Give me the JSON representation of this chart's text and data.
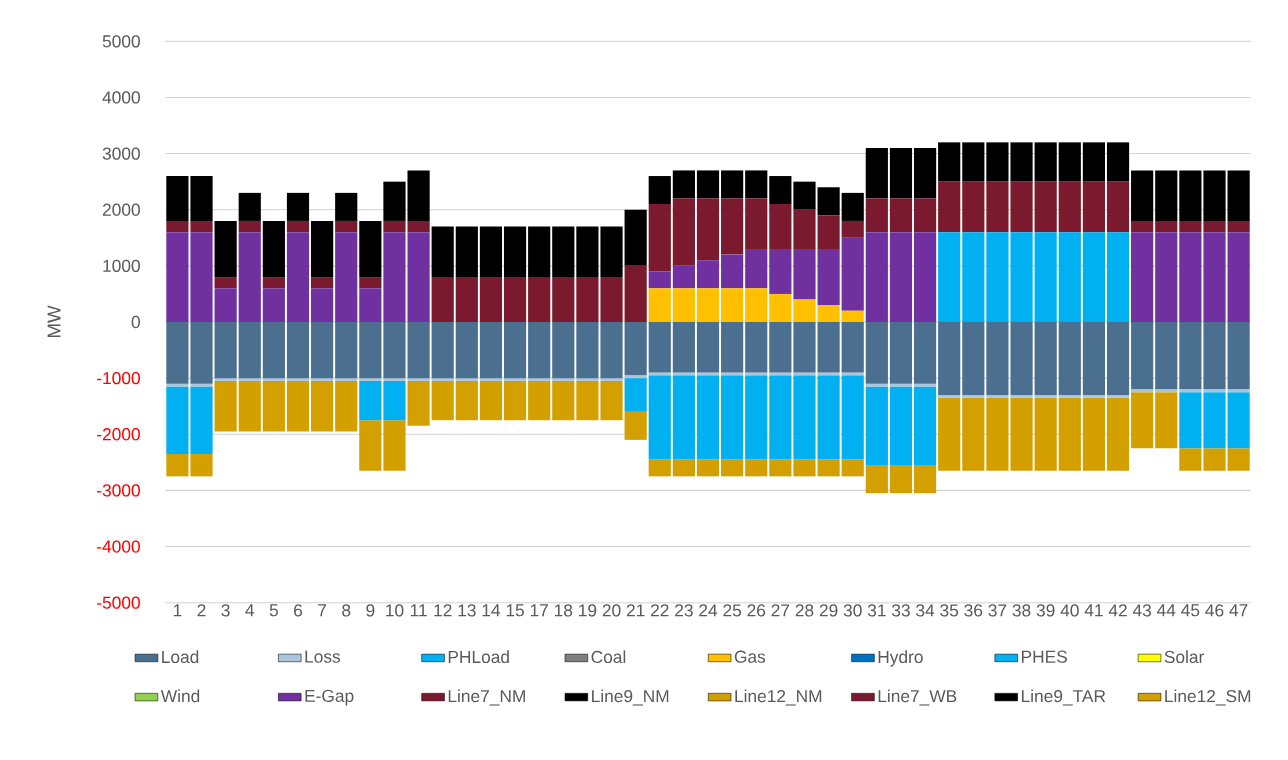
{
  "chart_data": {
    "type": "bar",
    "stacked": true,
    "ylabel": "MW",
    "categories": [
      "1",
      "2",
      "3",
      "4",
      "5",
      "6",
      "7",
      "8",
      "9",
      "10",
      "11",
      "12",
      "13",
      "14",
      "15",
      "17",
      "18",
      "19",
      "20",
      "21",
      "22",
      "23",
      "24",
      "25",
      "26",
      "27",
      "28",
      "29",
      "30",
      "31",
      "33",
      "34",
      "35",
      "36",
      "37",
      "38",
      "39",
      "40",
      "41",
      "42",
      "43",
      "44",
      "45",
      "46",
      "47"
    ],
    "ylim": [
      -5000,
      5000
    ],
    "yticks": [
      -5000,
      -4000,
      -3000,
      -2000,
      -1000,
      0,
      1000,
      2000,
      3000,
      4000,
      5000
    ],
    "grid": "y",
    "legend": "bottom",
    "series": [
      {
        "name": "Load",
        "color": "#4a6f8f",
        "values": [
          -1100,
          -1100,
          -1000,
          -1000,
          -1000,
          -1000,
          -1000,
          -1000,
          -1000,
          -1000,
          -1000,
          -1000,
          -1000,
          -1000,
          -1000,
          -1000,
          -1000,
          -1000,
          -1000,
          -950,
          -900,
          -900,
          -900,
          -900,
          -900,
          -900,
          -900,
          -900,
          -900,
          -1100,
          -1100,
          -1100,
          -1300,
          -1300,
          -1300,
          -1300,
          -1300,
          -1300,
          -1300,
          -1300,
          -1200,
          -1200,
          -1200,
          -1200,
          -1200
        ]
      },
      {
        "name": "Loss",
        "color": "#adc5da",
        "values": [
          -50,
          -50,
          -50,
          -50,
          -50,
          -50,
          -50,
          -50,
          -50,
          -50,
          -50,
          -50,
          -50,
          -50,
          -50,
          -50,
          -50,
          -50,
          -50,
          -50,
          -50,
          -50,
          -50,
          -50,
          -50,
          -50,
          -50,
          -50,
          -50,
          -50,
          -50,
          -50,
          -50,
          -50,
          -50,
          -50,
          -50,
          -50,
          -50,
          -50,
          -50,
          -50,
          -50,
          -50,
          -50
        ]
      },
      {
        "name": "PHLoad",
        "color": "#00b0f0",
        "values": [
          -1200,
          -1200,
          0,
          0,
          0,
          0,
          0,
          0,
          -700,
          -700,
          0,
          0,
          0,
          0,
          0,
          0,
          0,
          0,
          0,
          -600,
          -1500,
          -1500,
          -1500,
          -1500,
          -1500,
          -1500,
          -1500,
          -1500,
          -1500,
          -1400,
          -1400,
          -1400,
          0,
          0,
          0,
          0,
          0,
          0,
          0,
          0,
          0,
          0,
          -1000,
          -1000,
          -1000
        ]
      },
      {
        "name": "Coal",
        "color": "#7f7f7f",
        "values": [
          0,
          0,
          0,
          0,
          0,
          0,
          0,
          0,
          0,
          0,
          0,
          0,
          0,
          0,
          0,
          0,
          0,
          0,
          0,
          0,
          0,
          0,
          0,
          0,
          0,
          0,
          0,
          0,
          0,
          0,
          0,
          0,
          0,
          0,
          0,
          0,
          0,
          0,
          0,
          0,
          0,
          0,
          0,
          0,
          0
        ]
      },
      {
        "name": "Gas",
        "color": "#ffc000",
        "values": [
          0,
          0,
          0,
          0,
          0,
          0,
          0,
          0,
          0,
          0,
          0,
          0,
          0,
          0,
          0,
          0,
          0,
          0,
          0,
          0,
          600,
          600,
          600,
          600,
          600,
          500,
          400,
          300,
          200,
          0,
          0,
          0,
          0,
          0,
          0,
          0,
          0,
          0,
          0,
          0,
          0,
          0,
          0,
          0,
          0
        ]
      },
      {
        "name": "Hydro",
        "color": "#0070c0",
        "values": [
          0,
          0,
          0,
          0,
          0,
          0,
          0,
          0,
          0,
          0,
          0,
          0,
          0,
          0,
          0,
          0,
          0,
          0,
          0,
          0,
          0,
          0,
          0,
          0,
          0,
          0,
          0,
          0,
          0,
          0,
          0,
          0,
          0,
          0,
          0,
          0,
          0,
          0,
          0,
          0,
          0,
          0,
          0,
          0,
          0
        ]
      },
      {
        "name": "PHES",
        "color": "#00b0f0",
        "values": [
          0,
          0,
          0,
          0,
          0,
          0,
          0,
          0,
          0,
          0,
          0,
          0,
          0,
          0,
          0,
          0,
          0,
          0,
          0,
          0,
          0,
          0,
          0,
          0,
          0,
          0,
          0,
          0,
          0,
          0,
          0,
          0,
          1600,
          1600,
          1600,
          1600,
          1600,
          1600,
          1600,
          1600,
          0,
          0,
          0,
          0,
          0
        ]
      },
      {
        "name": "Solar",
        "color": "#ffff00",
        "values": [
          0,
          0,
          0,
          0,
          0,
          0,
          0,
          0,
          0,
          0,
          0,
          0,
          0,
          0,
          0,
          0,
          0,
          0,
          0,
          0,
          0,
          0,
          0,
          0,
          0,
          0,
          0,
          0,
          0,
          0,
          0,
          0,
          0,
          0,
          0,
          0,
          0,
          0,
          0,
          0,
          0,
          0,
          0,
          0,
          0
        ]
      },
      {
        "name": "Wind",
        "color": "#92d050",
        "values": [
          0,
          0,
          0,
          0,
          0,
          0,
          0,
          0,
          0,
          0,
          0,
          0,
          0,
          0,
          0,
          0,
          0,
          0,
          0,
          0,
          0,
          0,
          0,
          0,
          0,
          0,
          0,
          0,
          0,
          0,
          0,
          0,
          0,
          0,
          0,
          0,
          0,
          0,
          0,
          0,
          0,
          0,
          0,
          0,
          0
        ]
      },
      {
        "name": "E-Gap",
        "color": "#7030a0",
        "values": [
          1600,
          1600,
          600,
          1600,
          600,
          1600,
          600,
          1600,
          600,
          1600,
          1600,
          0,
          0,
          0,
          0,
          0,
          0,
          0,
          0,
          0,
          300,
          400,
          500,
          600,
          700,
          800,
          900,
          1000,
          1300,
          1600,
          1600,
          1600,
          0,
          0,
          0,
          0,
          0,
          0,
          0,
          0,
          1600,
          1600,
          1600,
          1600,
          1600
        ]
      },
      {
        "name": "Line7_NM",
        "color": "#7b1a2e",
        "values": [
          200,
          200,
          200,
          200,
          200,
          200,
          200,
          200,
          200,
          200,
          200,
          800,
          800,
          800,
          800,
          800,
          800,
          800,
          800,
          1000,
          1200,
          1200,
          1100,
          1000,
          900,
          800,
          700,
          600,
          300,
          600,
          600,
          600,
          0,
          0,
          0,
          0,
          0,
          0,
          0,
          0,
          0,
          0,
          0,
          0,
          0
        ]
      },
      {
        "name": "Line9_NM",
        "color": "#000000",
        "values": [
          800,
          800,
          1000,
          500,
          1000,
          500,
          1000,
          500,
          1000,
          700,
          900,
          900,
          900,
          900,
          900,
          900,
          900,
          900,
          900,
          1000,
          500,
          500,
          500,
          500,
          500,
          500,
          500,
          500,
          500,
          900,
          900,
          900,
          0,
          0,
          0,
          0,
          0,
          0,
          0,
          0,
          0,
          0,
          0,
          0,
          0
        ]
      },
      {
        "name": "Line12_NM",
        "color": "#d4a000",
        "values": [
          -400,
          -400,
          -900,
          -900,
          -900,
          -900,
          -900,
          -900,
          -900,
          -900,
          -800,
          -700,
          -700,
          -700,
          -700,
          -700,
          -700,
          -700,
          -700,
          -500,
          -300,
          -300,
          -300,
          -300,
          -300,
          -300,
          -300,
          -300,
          -300,
          -500,
          -500,
          -500,
          0,
          0,
          0,
          0,
          0,
          0,
          0,
          0,
          0,
          0,
          0,
          0,
          0
        ]
      },
      {
        "name": "Line7_WB",
        "color": "#7b1a2e",
        "values": [
          0,
          0,
          0,
          0,
          0,
          0,
          0,
          0,
          0,
          0,
          0,
          0,
          0,
          0,
          0,
          0,
          0,
          0,
          0,
          0,
          0,
          0,
          0,
          0,
          0,
          0,
          0,
          0,
          0,
          0,
          0,
          0,
          900,
          900,
          900,
          900,
          900,
          900,
          900,
          900,
          200,
          200,
          200,
          200,
          200
        ]
      },
      {
        "name": "Line9_TAR",
        "color": "#000000",
        "values": [
          0,
          0,
          0,
          0,
          0,
          0,
          0,
          0,
          0,
          0,
          0,
          0,
          0,
          0,
          0,
          0,
          0,
          0,
          0,
          0,
          0,
          0,
          0,
          0,
          0,
          0,
          0,
          0,
          0,
          0,
          0,
          0,
          700,
          700,
          700,
          700,
          700,
          700,
          700,
          700,
          900,
          900,
          900,
          900,
          900
        ]
      },
      {
        "name": "Line12_SM",
        "color": "#d4a000",
        "values": [
          0,
          0,
          0,
          0,
          0,
          0,
          0,
          0,
          0,
          0,
          0,
          0,
          0,
          0,
          0,
          0,
          0,
          0,
          0,
          0,
          0,
          0,
          0,
          0,
          0,
          0,
          0,
          0,
          0,
          0,
          0,
          0,
          -1300,
          -1300,
          -1300,
          -1300,
          -1300,
          -1300,
          -1300,
          -1300,
          -1000,
          -1000,
          -400,
          -400,
          -400
        ]
      }
    ]
  }
}
